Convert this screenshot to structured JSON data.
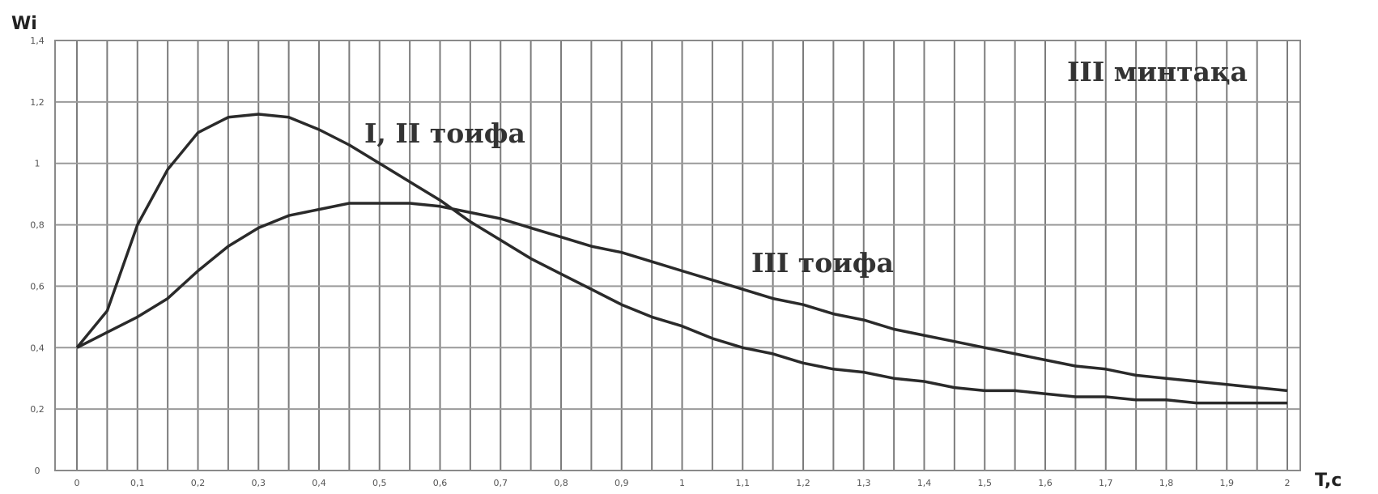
{
  "chart_data": {
    "type": "line",
    "title": "",
    "ylabel": "Wi",
    "xlabel": "T,c",
    "xlim": [
      0,
      2
    ],
    "ylim": [
      0,
      1.4
    ],
    "grid": true,
    "x_ticks": [
      "0",
      "0,1",
      "0,2",
      "0,3",
      "0,4",
      "0,5",
      "0,6",
      "0,7",
      "0,8",
      "0,9",
      "1",
      "1,1",
      "1,2",
      "1,3",
      "1,4",
      "1,5",
      "1,6",
      "1,7",
      "1,8",
      "1,9",
      "2"
    ],
    "y_ticks": [
      "0",
      "0,2",
      "0,4",
      "0,6",
      "0,8",
      "1",
      "1,2",
      "1,4"
    ],
    "x": [
      0,
      0.05,
      0.1,
      0.15,
      0.2,
      0.25,
      0.3,
      0.35,
      0.4,
      0.45,
      0.5,
      0.55,
      0.6,
      0.65,
      0.7,
      0.75,
      0.8,
      0.85,
      0.9,
      0.95,
      1.0,
      1.05,
      1.1,
      1.15,
      1.2,
      1.25,
      1.3,
      1.35,
      1.4,
      1.45,
      1.5,
      1.55,
      1.6,
      1.65,
      1.7,
      1.75,
      1.8,
      1.85,
      1.9,
      1.95,
      2.0
    ],
    "series": [
      {
        "name": "I, II тоифа",
        "values": [
          0.4,
          0.52,
          0.8,
          0.98,
          1.1,
          1.15,
          1.16,
          1.15,
          1.11,
          1.06,
          1.0,
          0.94,
          0.88,
          0.81,
          0.75,
          0.69,
          0.64,
          0.59,
          0.54,
          0.5,
          0.47,
          0.43,
          0.4,
          0.38,
          0.35,
          0.33,
          0.32,
          0.3,
          0.29,
          0.27,
          0.26,
          0.26,
          0.25,
          0.24,
          0.24,
          0.23,
          0.23,
          0.22,
          0.22,
          0.22,
          0.22
        ]
      },
      {
        "name": "III тоифа",
        "values": [
          0.4,
          0.45,
          0.5,
          0.56,
          0.65,
          0.73,
          0.79,
          0.83,
          0.85,
          0.87,
          0.87,
          0.87,
          0.86,
          0.84,
          0.82,
          0.79,
          0.76,
          0.73,
          0.71,
          0.68,
          0.65,
          0.62,
          0.59,
          0.56,
          0.54,
          0.51,
          0.49,
          0.46,
          0.44,
          0.42,
          0.4,
          0.38,
          0.36,
          0.34,
          0.33,
          0.31,
          0.3,
          0.29,
          0.28,
          0.27,
          0.26
        ]
      }
    ],
    "annotations": [
      "III минтақа",
      "I, II тоифа",
      "III тоифа"
    ]
  }
}
